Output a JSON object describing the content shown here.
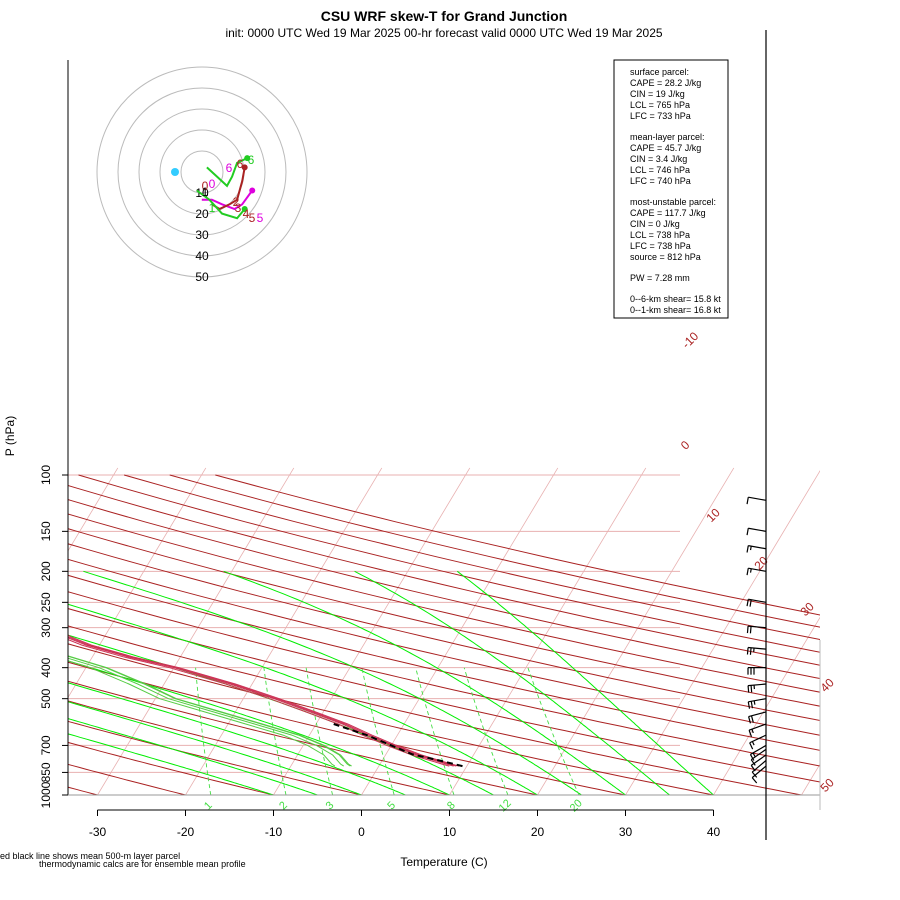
{
  "title": "CSU WRF skew-T for Grand Junction",
  "subtitle": "init: 0000 UTC Wed 19 Mar 2025     00-hr forecast valid 0000 UTC Wed 19 Mar 2025",
  "footnote_1": "ed black line shows mean 500-m layer parcel",
  "footnote_2": "thermodynamic calcs are for ensemble mean profile",
  "colors": {
    "temperature": "#cc3355",
    "dewpoint": "#55cc44",
    "dry_adiabat": "#aa2222",
    "moist_adiabat": "#00ee00",
    "mixing_ratio": "#44dd44",
    "isotherm_grid": "#e8b0b0",
    "parcel": "#000000",
    "hodo_green": "#22cc22",
    "hodo_magenta": "#dd00dd",
    "hodo_red": "#aa2222",
    "storm_motion": "#33ccff"
  },
  "chart_data": {
    "type": "skew-t",
    "xlabel": "Temperature (C)",
    "ylabel": "P (hPa)",
    "x_ticks": [
      -30,
      -20,
      -10,
      0,
      10,
      20,
      30,
      40
    ],
    "y_ticks": [
      100,
      150,
      200,
      250,
      300,
      400,
      500,
      700,
      850,
      1000
    ],
    "xlim": [
      -33,
      40
    ],
    "ylim": [
      1000,
      100
    ],
    "isotherm_labels": [
      "-10",
      "0",
      "10",
      "20",
      "30",
      "40",
      "50"
    ],
    "mixing_ratio_labels": [
      "1",
      "2",
      "3",
      "5",
      "8",
      "12",
      "20"
    ],
    "temperature_profile": {
      "name": "temperature",
      "p": [
        812,
        800,
        750,
        700,
        650,
        600,
        550,
        500,
        450,
        400,
        370,
        340,
        320,
        300,
        260,
        230,
        200,
        170,
        140,
        120,
        108
      ],
      "t": [
        8.5,
        7.5,
        3.5,
        0.0,
        -3.5,
        -7.0,
        -11.5,
        -16.5,
        -22.5,
        -30.0,
        -36.0,
        -41.5,
        -44.5,
        -46.5,
        -51.5,
        -54.5,
        -57.0,
        -58.0,
        -58.5,
        -59.0,
        -59.0
      ]
    },
    "dewpoint_profile": {
      "name": "dewpoint",
      "p": [
        812,
        800,
        750,
        700,
        650,
        600,
        550,
        500,
        450,
        400,
        360,
        330,
        300,
        280,
        250,
        220,
        180
      ],
      "td": [
        -4.0,
        -4.5,
        -6.0,
        -8.5,
        -12.0,
        -17.0,
        -22.5,
        -28.5,
        -33.0,
        -38.5,
        -45.0,
        -52.0,
        -63.0,
        -72.0,
        -73.0,
        -72.0,
        -72.0
      ]
    },
    "parcel_profile": {
      "name": "mean 500-m layer parcel",
      "p": [
        812,
        780,
        746,
        700,
        650,
        600
      ],
      "t": [
        9.5,
        6.5,
        3.0,
        0.0,
        -3.5,
        -8.0
      ]
    },
    "wind_barbs": {
      "units": "kt",
      "p": [
        812,
        780,
        750,
        720,
        700,
        650,
        600,
        550,
        500,
        450,
        400,
        350,
        300,
        250,
        200,
        170,
        150,
        120
      ],
      "speed_kt": [
        10,
        10,
        10,
        10,
        15,
        15,
        15,
        20,
        25,
        25,
        30,
        25,
        20,
        20,
        15,
        15,
        10,
        10
      ],
      "dir_deg": [
        230,
        230,
        235,
        235,
        240,
        245,
        250,
        255,
        260,
        265,
        270,
        275,
        275,
        280,
        280,
        280,
        280,
        280
      ]
    },
    "hodograph": {
      "rings": [
        "10",
        "20",
        "30",
        "40",
        "50"
      ],
      "level_labels": [
        "6",
        "6",
        "6",
        "0",
        "0",
        "1",
        "1",
        "2",
        "3",
        "4",
        "5",
        "5"
      ],
      "storm_motion_marker": "cyan dot"
    }
  },
  "parcel_box": {
    "surface_header": "surface parcel:",
    "surface_cape": "CAPE = 28.2 J/kg",
    "surface_cin": "CIN = 19 J/kg",
    "surface_lcl": "LCL = 765 hPa",
    "surface_lfc": "LFC = 733 hPa",
    "mixed_header": "mean-layer parcel:",
    "mixed_cape": "CAPE = 45.7 J/kg",
    "mixed_cin": "CIN = 3.4 J/kg",
    "mixed_lcl": "LCL = 746 hPa",
    "mixed_lfc": "LFC = 740 hPa",
    "mu_header": "most-unstable parcel:",
    "mu_cape": "CAPE = 117.7 J/kg",
    "mu_cin": "CIN = 0 J/kg",
    "mu_lcl": "LCL = 738 hPa",
    "mu_lfc": "LFC = 738 hPa",
    "mu_source": "source = 812 hPa",
    "pw": "PW =  7.28 mm",
    "shear_6km": "0--6-km shear= 15.8 kt",
    "shear_1km": "0--1-km shear= 16.8 kt"
  }
}
